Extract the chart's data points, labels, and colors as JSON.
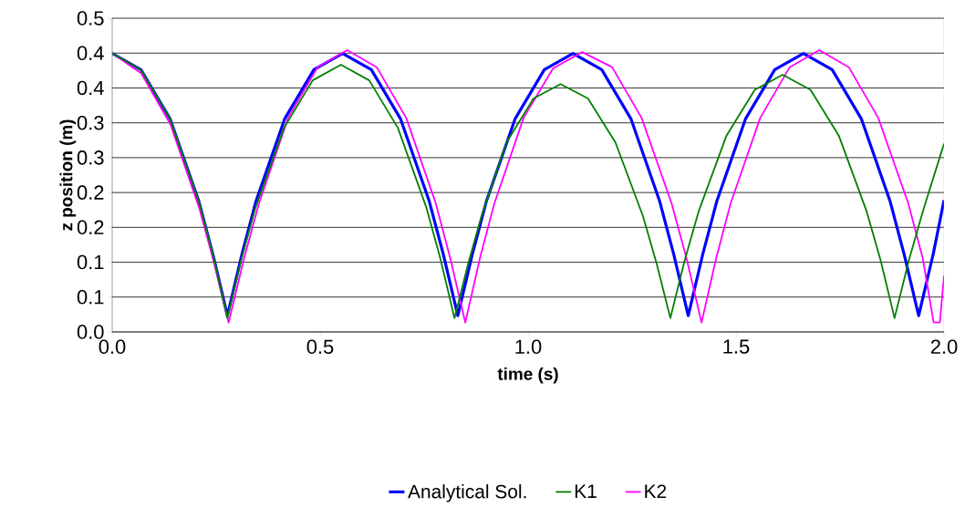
{
  "chart_data": {
    "type": "line",
    "xlabel": "time (s)",
    "ylabel": "z position (m)",
    "xlim": [
      0,
      2
    ],
    "ylim": [
      0,
      0.5
    ],
    "xticks": [
      {
        "value": 0,
        "label": "0.0"
      },
      {
        "value": 0.5,
        "label": "0.5"
      },
      {
        "value": 1,
        "label": "1.0"
      },
      {
        "value": 1.5,
        "label": "1.5"
      },
      {
        "value": 2,
        "label": "2.0"
      }
    ],
    "yticks": [
      {
        "value": 0,
        "label": "0.0"
      },
      {
        "value": 0.0556,
        "label": "0.1"
      },
      {
        "value": 0.1111,
        "label": "0.1"
      },
      {
        "value": 0.1667,
        "label": "0.2"
      },
      {
        "value": 0.2222,
        "label": "0.2"
      },
      {
        "value": 0.2778,
        "label": "0.3"
      },
      {
        "value": 0.3333,
        "label": "0.3"
      },
      {
        "value": 0.3889,
        "label": "0.4"
      },
      {
        "value": 0.4444,
        "label": "0.4"
      },
      {
        "value": 0.5,
        "label": "0.5"
      }
    ],
    "grid": "y",
    "legend": "bottom",
    "marker": "none",
    "line_style": "solid",
    "series": [
      {
        "name": "Analytical Sol.",
        "color": "#0000ff",
        "x": [
          0,
          0.069,
          0.139,
          0.208,
          0.242,
          0.277,
          0.312,
          0.346,
          0.415,
          0.485,
          0.554,
          0.623,
          0.693,
          0.762,
          0.796,
          0.831,
          0.866,
          0.9,
          0.969,
          1.039,
          1.108,
          1.177,
          1.247,
          1.316,
          1.35,
          1.385,
          1.42,
          1.454,
          1.523,
          1.593,
          1.662,
          1.731,
          1.801,
          1.87,
          1.904,
          1.939,
          1.974,
          2.0
        ],
        "values": [
          0.444,
          0.418,
          0.34,
          0.209,
          0.124,
          0.026,
          0.124,
          0.209,
          0.34,
          0.418,
          0.444,
          0.418,
          0.34,
          0.209,
          0.124,
          0.026,
          0.124,
          0.209,
          0.34,
          0.418,
          0.444,
          0.418,
          0.34,
          0.209,
          0.124,
          0.026,
          0.124,
          0.209,
          0.34,
          0.418,
          0.444,
          0.418,
          0.34,
          0.209,
          0.124,
          0.026,
          0.124,
          0.21
        ]
      },
      {
        "name": "K1",
        "color": "#008000",
        "x": [
          0,
          0.069,
          0.139,
          0.208,
          0.242,
          0.277,
          0.311,
          0.345,
          0.413,
          0.482,
          0.55,
          0.618,
          0.687,
          0.755,
          0.789,
          0.823,
          0.856,
          0.888,
          0.948,
          1.013,
          1.078,
          1.144,
          1.21,
          1.276,
          1.309,
          1.342,
          1.376,
          1.41,
          1.477,
          1.545,
          1.612,
          1.679,
          1.747,
          1.814,
          1.848,
          1.881,
          1.915,
          1.949,
          2.0
        ],
        "values": [
          0.444,
          0.418,
          0.34,
          0.209,
          0.124,
          0.022,
          0.117,
          0.199,
          0.325,
          0.401,
          0.426,
          0.401,
          0.325,
          0.199,
          0.117,
          0.022,
          0.109,
          0.185,
          0.302,
          0.372,
          0.395,
          0.372,
          0.302,
          0.185,
          0.109,
          0.022,
          0.113,
          0.192,
          0.313,
          0.386,
          0.41,
          0.386,
          0.313,
          0.192,
          0.113,
          0.022,
          0.113,
          0.192,
          0.3
        ]
      },
      {
        "name": "K2",
        "color": "#ff00ff",
        "x": [
          0,
          0.07,
          0.14,
          0.21,
          0.245,
          0.28,
          0.317,
          0.353,
          0.423,
          0.494,
          0.565,
          0.636,
          0.707,
          0.778,
          0.813,
          0.849,
          0.884,
          0.919,
          0.989,
          1.06,
          1.13,
          1.202,
          1.273,
          1.345,
          1.381,
          1.417,
          1.452,
          1.487,
          1.558,
          1.629,
          1.7,
          1.771,
          1.842,
          1.914,
          1.949,
          1.975,
          1.99,
          2.0
        ],
        "values": [
          0.444,
          0.412,
          0.331,
          0.196,
          0.11,
          0.015,
          0.117,
          0.205,
          0.341,
          0.422,
          0.449,
          0.422,
          0.341,
          0.205,
          0.117,
          0.015,
          0.117,
          0.205,
          0.341,
          0.42,
          0.446,
          0.422,
          0.341,
          0.205,
          0.117,
          0.015,
          0.117,
          0.205,
          0.341,
          0.422,
          0.449,
          0.422,
          0.341,
          0.205,
          0.117,
          0.015,
          0.015,
          0.09
        ]
      }
    ]
  }
}
